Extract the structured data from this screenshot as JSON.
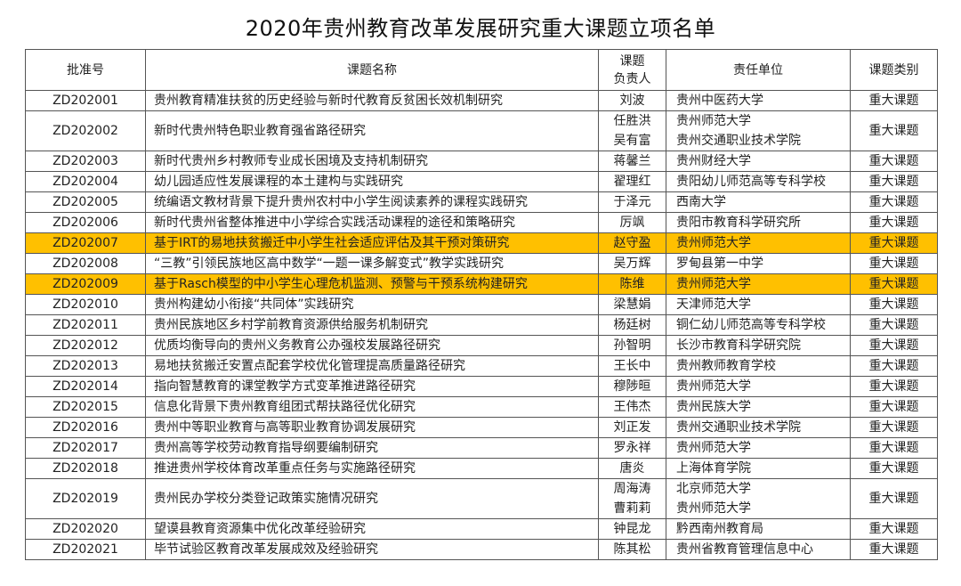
{
  "title": "2020年贵州教育改革发展研究重大课题立项名单",
  "highlight_color": "#FFC000",
  "headers": {
    "code": "批准号",
    "topic": "课题名称",
    "leader": [
      "课题",
      "负责人"
    ],
    "unit": "责任单位",
    "category": "课题类别"
  },
  "rows": [
    {
      "code": "ZD202001",
      "topic": "贵州教育精准扶贫的历史经验与新时代教育反贫困长效机制研究",
      "leaders": [
        "刘波"
      ],
      "units": [
        "贵州中医药大学"
      ],
      "category": "重大课题"
    },
    {
      "code": "ZD202002",
      "topic": "新时代贵州特色职业教育强省路径研究",
      "leaders": [
        "任胜洪",
        "吴有富"
      ],
      "units": [
        "贵州师范大学",
        "贵州交通职业技术学院"
      ],
      "category": "重大课题"
    },
    {
      "code": "ZD202003",
      "topic": "新时代贵州乡村教师专业成长困境及支持机制研究",
      "leaders": [
        "蒋馨兰"
      ],
      "units": [
        "贵州财经大学"
      ],
      "category": "重大课题"
    },
    {
      "code": "ZD202004",
      "topic": "幼儿园适应性发展课程的本土建构与实践研究",
      "leaders": [
        "翟理红"
      ],
      "units": [
        "贵阳幼儿师范高等专科学校"
      ],
      "category": "重大课题"
    },
    {
      "code": "ZD202005",
      "topic": "统编语文教材背景下提升贵州农村中小学生阅读素养的课程实践研究",
      "leaders": [
        "于泽元"
      ],
      "units": [
        "西南大学"
      ],
      "category": "重大课题"
    },
    {
      "code": "ZD202006",
      "topic": "新时代贵州省整体推进中小学综合实践活动课程的途径和策略研究",
      "leaders": [
        "厉飒"
      ],
      "units": [
        "贵阳市教育科学研究所"
      ],
      "category": "重大课题"
    },
    {
      "code": "ZD202007",
      "topic": "基于IRT的易地扶贫搬迁中小学生社会适应评估及其干预对策研究",
      "leaders": [
        "赵守盈"
      ],
      "units": [
        "贵州师范大学"
      ],
      "category": "重大课题",
      "highlighted": true
    },
    {
      "code": "ZD202008",
      "topic": "“三教”引领民族地区高中数学“一题一课多解变式”教学实践研究",
      "leaders": [
        "吴万辉"
      ],
      "units": [
        "罗甸县第一中学"
      ],
      "category": "重大课题"
    },
    {
      "code": "ZD202009",
      "topic": "基于Rasch模型的中小学生心理危机监测、预警与干预系统构建研究",
      "leaders": [
        "陈维"
      ],
      "units": [
        "贵州师范大学"
      ],
      "category": "重大课题",
      "highlighted": true
    },
    {
      "code": "ZD202010",
      "topic": "贵州构建幼小衔接“共同体”实践研究",
      "leaders": [
        "梁慧娟"
      ],
      "units": [
        "天津师范大学"
      ],
      "category": "重大课题"
    },
    {
      "code": "ZD202011",
      "topic": "贵州民族地区乡村学前教育资源供给服务机制研究",
      "leaders": [
        "杨廷树"
      ],
      "units": [
        "铜仁幼儿师范高等专科学校"
      ],
      "category": "重大课题"
    },
    {
      "code": "ZD202012",
      "topic": "优质均衡导向的贵州义务教育公办强校发展路径研究",
      "leaders": [
        "孙智明"
      ],
      "units": [
        "长沙市教育科学研究院"
      ],
      "category": "重大课题"
    },
    {
      "code": "ZD202013",
      "topic": "易地扶贫搬迁安置点配套学校优化管理提高质量路径研究",
      "leaders": [
        "王长中"
      ],
      "units": [
        "贵州教师教育学校"
      ],
      "category": "重大课题"
    },
    {
      "code": "ZD202014",
      "topic": "指向智慧教育的课堂教学方式变革推进路径研究",
      "leaders": [
        "穆陟晅"
      ],
      "units": [
        "贵州师范大学"
      ],
      "category": "重大课题"
    },
    {
      "code": "ZD202015",
      "topic": "信息化背景下贵州教育组团式帮扶路径优化研究",
      "leaders": [
        "王伟杰"
      ],
      "units": [
        "贵州民族大学"
      ],
      "category": "重大课题"
    },
    {
      "code": "ZD202016",
      "topic": "贵州中等职业教育与高等职业教育协调发展研究",
      "leaders": [
        "刘正发"
      ],
      "units": [
        "贵州交通职业技术学院"
      ],
      "category": "重大课题"
    },
    {
      "code": "ZD202017",
      "topic": "贵州高等学校劳动教育指导纲要编制研究",
      "leaders": [
        "罗永祥"
      ],
      "units": [
        "贵州师范大学"
      ],
      "category": "重大课题"
    },
    {
      "code": "ZD202018",
      "topic": "推进贵州学校体育改革重点任务与实施路径研究",
      "leaders": [
        "唐炎"
      ],
      "units": [
        "上海体育学院"
      ],
      "category": "重大课题"
    },
    {
      "code": "ZD202019",
      "topic": "贵州民办学校分类登记政策实施情况研究",
      "leaders": [
        "周海涛",
        "曹莉莉"
      ],
      "units": [
        "北京师范大学",
        "贵州师范大学"
      ],
      "category": "重大课题"
    },
    {
      "code": "ZD202020",
      "topic": "望谟县教育资源集中优化改革经验研究",
      "leaders": [
        "钟昆龙"
      ],
      "units": [
        "黔西南州教育局"
      ],
      "category": "重大课题"
    },
    {
      "code": "ZD202021",
      "topic": "毕节试验区教育改革发展成效及经验研究",
      "leaders": [
        "陈其松"
      ],
      "units": [
        "贵州省教育管理信息中心"
      ],
      "category": "重大课题"
    }
  ]
}
